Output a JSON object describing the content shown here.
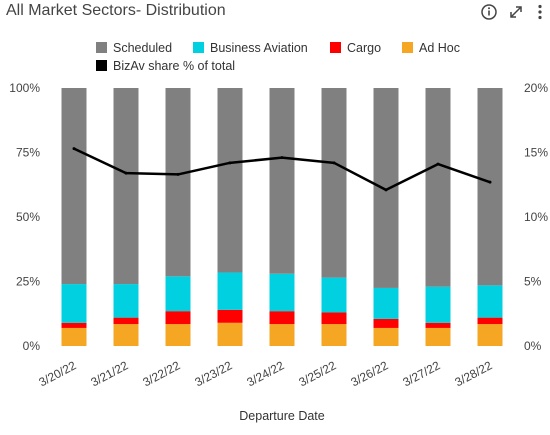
{
  "header": {
    "title": "All Market Sectors- Distribution",
    "info_icon": "info-circle-icon",
    "expand_icon": "expand-arrows-icon",
    "menu_icon": "vertical-ellipsis-icon"
  },
  "chart_data": {
    "type": "bar",
    "stacked": true,
    "title": "All Market Sectors- Distribution",
    "xlabel": "Departure Date",
    "ylabel": "",
    "categories": [
      "3/20/22",
      "3/21/22",
      "3/22/22",
      "3/23/22",
      "3/24/22",
      "3/25/22",
      "3/26/22",
      "3/27/22",
      "3/28/22"
    ],
    "ylim": [
      0,
      100
    ],
    "y_ticks": [
      "0%",
      "25%",
      "50%",
      "75%",
      "100%"
    ],
    "y2lim": [
      0,
      20
    ],
    "y2_ticks": [
      "0%",
      "5%",
      "10%",
      "15%",
      "20%"
    ],
    "legend_position": "top",
    "series": [
      {
        "name": "Ad Hoc",
        "color": "#F5A623",
        "values": [
          7,
          8.5,
          8.5,
          9,
          8.5,
          8.5,
          7,
          7,
          8.5
        ]
      },
      {
        "name": "Cargo",
        "color": "#FF0000",
        "values": [
          2,
          2.5,
          5,
          5,
          5,
          4.5,
          3.5,
          2,
          2.5
        ]
      },
      {
        "name": "Business Aviation",
        "color": "#00D0E0",
        "values": [
          15,
          13,
          13.5,
          14.5,
          14.5,
          13.5,
          12,
          14,
          12.5
        ]
      },
      {
        "name": "Scheduled",
        "color": "#808080",
        "values": [
          76,
          76,
          73,
          71.5,
          72,
          73.5,
          77.5,
          77,
          76.5
        ]
      }
    ],
    "legend_order": [
      "Scheduled",
      "Business Aviation",
      "Cargo",
      "Ad Hoc"
    ],
    "line_series": {
      "name": "BizAv share % of total",
      "color": "#000000",
      "axis": "right",
      "values": [
        15.3,
        13.4,
        13.3,
        14.2,
        14.6,
        14.2,
        12.1,
        14.1,
        12.7
      ]
    }
  }
}
